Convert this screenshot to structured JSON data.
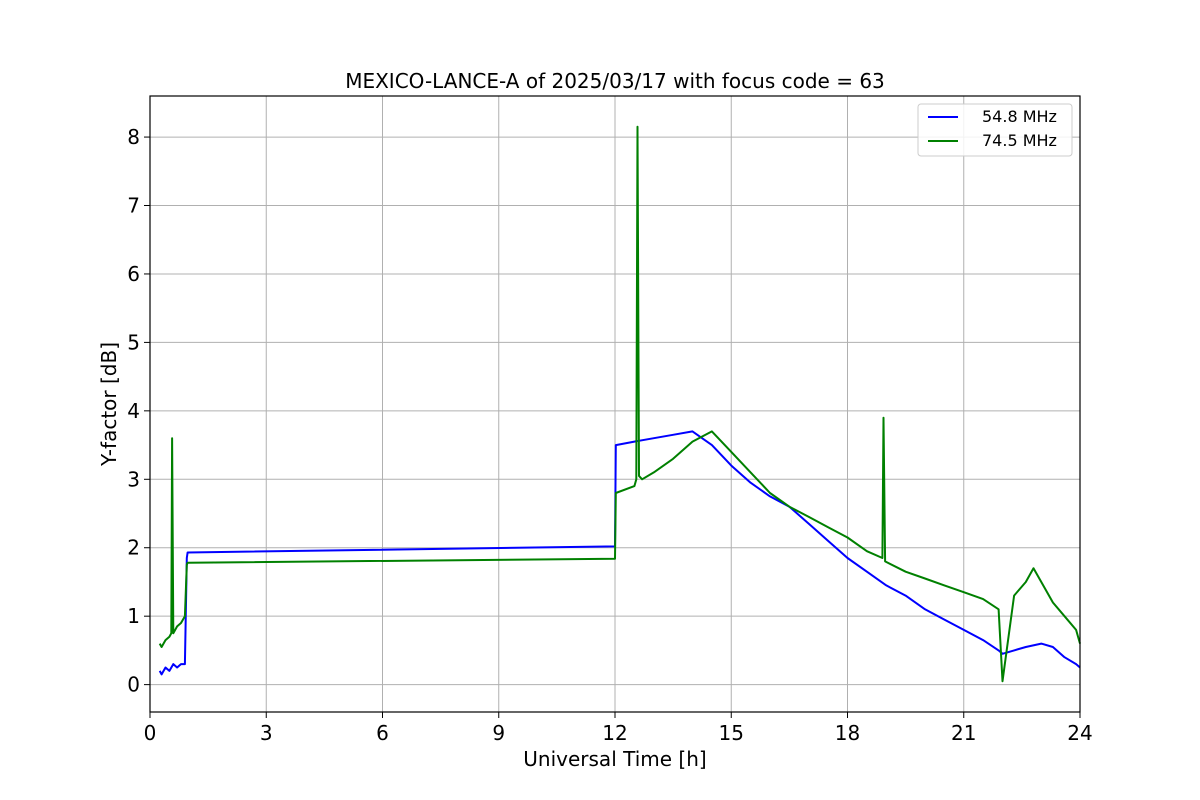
{
  "chart_data": {
    "type": "line",
    "title": "MEXICO-LANCE-A of 2025/03/17 with focus code = 63",
    "xlabel": "Universal Time [h]",
    "ylabel": "Y-factor [dB]",
    "xlim": [
      0,
      24
    ],
    "ylim": [
      -0.4,
      8.6
    ],
    "xticks": [
      0,
      3,
      6,
      9,
      12,
      15,
      18,
      21,
      24
    ],
    "yticks": [
      0,
      1,
      2,
      3,
      4,
      5,
      6,
      7,
      8
    ],
    "grid": true,
    "legend_position": "top-right",
    "series": [
      {
        "name": "54.8 MHz",
        "color": "#0000ff",
        "x": [
          0.25,
          0.3,
          0.4,
          0.5,
          0.6,
          0.7,
          0.8,
          0.9,
          0.95,
          0.97,
          12.0,
          12.02,
          12.5,
          13.0,
          13.5,
          14.0,
          14.5,
          15.0,
          15.5,
          16.0,
          16.5,
          17.0,
          17.5,
          18.0,
          18.5,
          19.0,
          19.5,
          20.0,
          20.5,
          21.0,
          21.5,
          21.9,
          22.0,
          22.3,
          22.6,
          23.0,
          23.3,
          23.6,
          23.9,
          24.0
        ],
        "y": [
          0.2,
          0.15,
          0.25,
          0.2,
          0.3,
          0.25,
          0.3,
          0.3,
          1.85,
          1.93,
          2.02,
          3.5,
          3.55,
          3.6,
          3.65,
          3.7,
          3.5,
          3.2,
          2.95,
          2.75,
          2.6,
          2.35,
          2.1,
          1.85,
          1.65,
          1.45,
          1.3,
          1.1,
          0.95,
          0.8,
          0.65,
          0.5,
          0.45,
          0.5,
          0.55,
          0.6,
          0.55,
          0.4,
          0.3,
          0.25
        ]
      },
      {
        "name": "74.5 MHz",
        "color": "#008000",
        "x": [
          0.25,
          0.3,
          0.4,
          0.5,
          0.55,
          0.57,
          0.6,
          0.7,
          0.8,
          0.9,
          0.95,
          0.97,
          12.0,
          12.02,
          12.5,
          12.55,
          12.58,
          12.62,
          12.7,
          13.0,
          13.5,
          14.0,
          14.5,
          15.0,
          15.5,
          16.0,
          16.5,
          17.0,
          17.5,
          18.0,
          18.5,
          18.9,
          18.93,
          18.97,
          19.5,
          20.0,
          20.5,
          21.0,
          21.5,
          21.9,
          22.0,
          22.3,
          22.6,
          22.8,
          23.0,
          23.3,
          23.6,
          23.9,
          24.0
        ],
        "y": [
          0.6,
          0.55,
          0.65,
          0.7,
          0.75,
          3.6,
          0.75,
          0.85,
          0.9,
          1.0,
          1.75,
          1.78,
          1.84,
          2.8,
          2.9,
          3.0,
          8.15,
          3.05,
          3.0,
          3.1,
          3.3,
          3.55,
          3.7,
          3.4,
          3.1,
          2.8,
          2.6,
          2.45,
          2.3,
          2.15,
          1.95,
          1.85,
          3.9,
          1.8,
          1.65,
          1.55,
          1.45,
          1.35,
          1.25,
          1.1,
          0.05,
          1.3,
          1.5,
          1.7,
          1.5,
          1.2,
          1.0,
          0.8,
          0.6
        ]
      }
    ]
  }
}
